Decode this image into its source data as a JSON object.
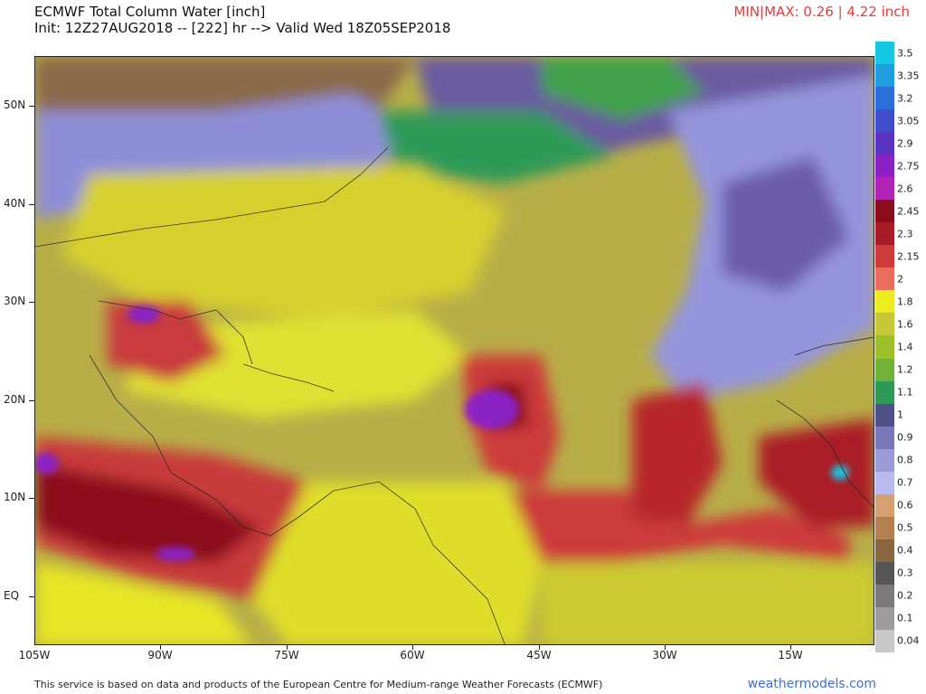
{
  "header": {
    "title": "ECMWF Total Column Water [inch]",
    "init_line": "Init: 12Z27AUG2018 -- [222] hr --> Valid Wed 18Z05SEP2018",
    "minmax": "MIN|MAX: 0.26 | 4.22 inch"
  },
  "lat_labels": [
    "50N",
    "40N",
    "30N",
    "20N",
    "10N",
    "EQ"
  ],
  "lon_labels": [
    "105W",
    "90W",
    "75W",
    "60W",
    "45W",
    "30W",
    "15W"
  ],
  "colorbar": {
    "labels": [
      "3.5",
      "3.35",
      "3.2",
      "3.05",
      "2.9",
      "2.75",
      "2.6",
      "2.45",
      "2.3",
      "2.15",
      "2",
      "1.8",
      "1.6",
      "1.4",
      "1.2",
      "1.1",
      "1",
      "0.9",
      "0.8",
      "0.7",
      "0.6",
      "0.5",
      "0.4",
      "0.3",
      "0.2",
      "0.1",
      "0.04"
    ],
    "colors": [
      "#17c6e2",
      "#1e9de0",
      "#2a6ed8",
      "#3c4ec8",
      "#5a34c0",
      "#8a22c4",
      "#b323b8",
      "#8b0d1c",
      "#a81c26",
      "#cc3a3a",
      "#ea6c5c",
      "#ecec22",
      "#c6c838",
      "#9ebf2c",
      "#6fb33a",
      "#2f9a58",
      "#4f4f8a",
      "#7878b8",
      "#9a9ad8",
      "#babaee",
      "#d4a070",
      "#b48050",
      "#8a6640",
      "#555555",
      "#7a7a7a",
      "#9c9c9c",
      "#c8c8c8"
    ]
  },
  "footer": {
    "disclaimer": "This service is based on data and products of the European Centre for Medium-range Weather Forecasts (ECMWF)",
    "brand": "weathermodels.com"
  }
}
